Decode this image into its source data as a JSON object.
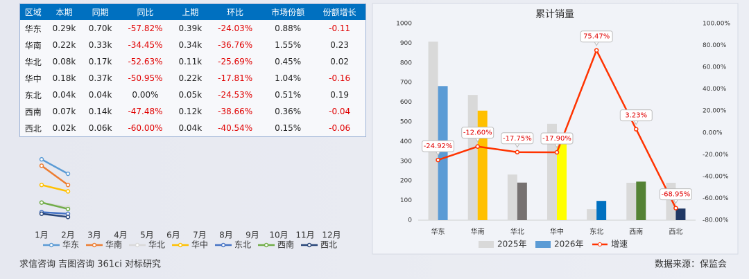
{
  "table": {
    "header": [
      "区域",
      "本期",
      "同期",
      "同比",
      "上期",
      "环比",
      "市场份额",
      "份额增长"
    ],
    "rows": [
      [
        "华东",
        "0.29k",
        "0.70k",
        "-57.82%",
        "0.39k",
        "-24.03%",
        "0.88%",
        "-0.11"
      ],
      [
        "华南",
        "0.22k",
        "0.33k",
        "-34.45%",
        "0.34k",
        "-36.76%",
        "1.55%",
        "0.23"
      ],
      [
        "华北",
        "0.08k",
        "0.17k",
        "-52.63%",
        "0.11k",
        "-25.69%",
        "0.45%",
        "0.02"
      ],
      [
        "华中",
        "0.18k",
        "0.37k",
        "-50.95%",
        "0.22k",
        "-17.81%",
        "1.04%",
        "-0.16"
      ],
      [
        "东北",
        "0.04k",
        "0.04k",
        "0.00%",
        "0.05k",
        "-24.53%",
        "0.51%",
        "0.19"
      ],
      [
        "西南",
        "0.07k",
        "0.14k",
        "-47.48%",
        "0.12k",
        "-38.66%",
        "0.36%",
        "-0.04"
      ],
      [
        "西北",
        "0.02k",
        "0.06k",
        "-60.00%",
        "0.04k",
        "-40.54%",
        "0.15%",
        "-0.06"
      ]
    ]
  },
  "chart_data": [
    {
      "type": "line",
      "categories": [
        "1月",
        "2月",
        "3月",
        "4月",
        "5月",
        "6月",
        "7月",
        "8月",
        "9月",
        "10月",
        "11月",
        "12月"
      ],
      "ylim": [
        0,
        0.45
      ],
      "series": [
        {
          "name": "华东",
          "color": "#5b9bd5",
          "values": [
            0.38,
            0.29,
            null,
            null,
            null,
            null,
            null,
            null,
            null,
            null,
            null,
            null
          ]
        },
        {
          "name": "华南",
          "color": "#ed7d31",
          "values": [
            0.34,
            0.22,
            null,
            null,
            null,
            null,
            null,
            null,
            null,
            null,
            null,
            null
          ]
        },
        {
          "name": "华北",
          "color": "#d9d9d9",
          "values": [
            0.11,
            0.08,
            null,
            null,
            null,
            null,
            null,
            null,
            null,
            null,
            null,
            null
          ]
        },
        {
          "name": "华中",
          "color": "#ffc000",
          "values": [
            0.22,
            0.18,
            null,
            null,
            null,
            null,
            null,
            null,
            null,
            null,
            null,
            null
          ]
        },
        {
          "name": "东北",
          "color": "#4472c4",
          "values": [
            0.05,
            0.04,
            null,
            null,
            null,
            null,
            null,
            null,
            null,
            null,
            null,
            null
          ]
        },
        {
          "name": "西南",
          "color": "#70ad47",
          "values": [
            0.11,
            0.07,
            null,
            null,
            null,
            null,
            null,
            null,
            null,
            null,
            null,
            null
          ]
        },
        {
          "name": "西北",
          "color": "#264478",
          "values": [
            0.04,
            0.02,
            null,
            null,
            null,
            null,
            null,
            null,
            null,
            null,
            null,
            null
          ]
        }
      ]
    },
    {
      "type": "combo",
      "title": "累计销量",
      "categories": [
        "华东",
        "华南",
        "华北",
        "华中",
        "东北",
        "西南",
        "西北"
      ],
      "ylim": [
        0,
        1000
      ],
      "yticks": [
        0,
        100,
        200,
        300,
        400,
        500,
        600,
        700,
        800,
        900,
        1000
      ],
      "y2lim": [
        -80,
        100
      ],
      "y2ticks": [
        {
          "value": -80,
          "label": "-80.00%"
        },
        {
          "value": -60,
          "label": "-60.00%"
        },
        {
          "value": -40,
          "label": "-40.00%"
        },
        {
          "value": -20,
          "label": "-20.00%"
        },
        {
          "value": 0,
          "label": "0.00%"
        },
        {
          "value": 20,
          "label": "20.00%"
        },
        {
          "value": 40,
          "label": "40.00%"
        },
        {
          "value": 60,
          "label": "60.00%"
        },
        {
          "value": 80,
          "label": "80.00%"
        },
        {
          "value": 100,
          "label": "100.00%"
        }
      ],
      "series": [
        {
          "name": "2025年",
          "type": "bar",
          "color": "#d9d9d9",
          "values": [
            908,
            637,
            232,
            490,
            56,
            190,
            190
          ]
        },
        {
          "name": "2026年",
          "type": "bar",
          "color": "#5b9bd5",
          "colors": [
            "#5b9bd5",
            "#ffc000",
            "#767171",
            "#ffff00",
            "#0070c0",
            "#548235",
            "#203864"
          ],
          "values": [
            682,
            557,
            191,
            402,
            98,
            196,
            59
          ]
        },
        {
          "name": "增速",
          "type": "line",
          "axis": "y2",
          "color": "#ff3300",
          "values": [
            -24.92,
            -12.6,
            -17.75,
            -17.9,
            75.47,
            3.23,
            -68.95
          ],
          "value_labels": [
            "-24.92%",
            "-12.60%",
            "-17.75%",
            "-17.90%",
            "75.47%",
            "3.23%",
            "-68.95%"
          ]
        }
      ]
    }
  ],
  "footer": {
    "left": "求信咨询 吉图咨询 361ci 对标研究",
    "right": "数据来源：保监会"
  }
}
